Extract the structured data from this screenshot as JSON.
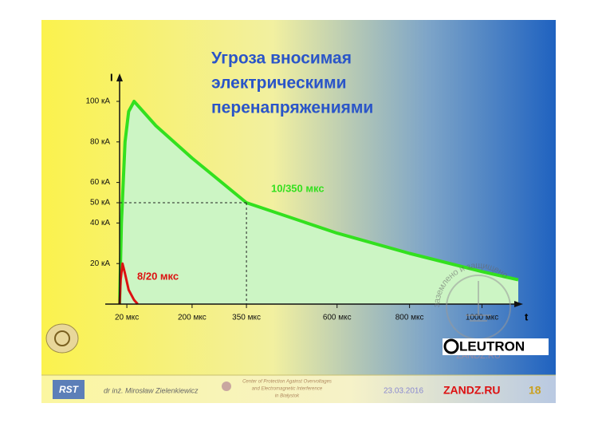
{
  "slide": {
    "title_lines": [
      "Угроза вносимая",
      "электрическими",
      "перенапряжениями"
    ],
    "logo": "LEUTRON",
    "watermark": "заземлено и защищено",
    "watermark_site": "ZANDZ.RU"
  },
  "chart_data": {
    "type": "area-line",
    "y_axis_label": "I",
    "x_axis_label": "t",
    "xlim": [
      0,
      1100
    ],
    "ylim": [
      0,
      110
    ],
    "xticks": [
      {
        "value": 20,
        "label": "20 мкс"
      },
      {
        "value": 200,
        "label": "200 мкс"
      },
      {
        "value": 350,
        "label": "350 мкс"
      },
      {
        "value": 600,
        "label": "600 мкс"
      },
      {
        "value": 800,
        "label": "800 мкс"
      },
      {
        "value": 1000,
        "label": "1000 мкс"
      }
    ],
    "yticks": [
      {
        "value": 20,
        "label": "20 кА"
      },
      {
        "value": 40,
        "label": "40 кА"
      },
      {
        "value": 50,
        "label": "50 кА"
      },
      {
        "value": 60,
        "label": "60 кА"
      },
      {
        "value": 80,
        "label": "80 кА"
      },
      {
        "value": 100,
        "label": "100 кА"
      }
    ],
    "series": [
      {
        "name": "10/350 мкс",
        "color": "#33e01f",
        "fill": "#ccf5c4",
        "x": [
          0,
          5,
          15,
          25,
          40,
          100,
          200,
          350,
          600,
          800,
          1000,
          1100
        ],
        "values": [
          0,
          40,
          80,
          95,
          100,
          88,
          72,
          50,
          35,
          25,
          16,
          12
        ]
      },
      {
        "name": "8/20 мкс",
        "color": "#dd1111",
        "x": [
          0,
          3,
          8,
          15,
          25,
          40,
          50
        ],
        "values": [
          0,
          12,
          20,
          15,
          7,
          2,
          0
        ]
      }
    ],
    "reference_point": {
      "x": 350,
      "y": 50
    }
  },
  "footer": {
    "logo": "RST",
    "author": "dr inż. Mirosław Zielenkiewicz",
    "center_lines": [
      "Center of Protection Against Overvoltages",
      "and Electromagnetic Interference",
      "in Białystok"
    ],
    "date": "23.03.2016",
    "site": "ZANDZ.RU",
    "page": "18"
  }
}
